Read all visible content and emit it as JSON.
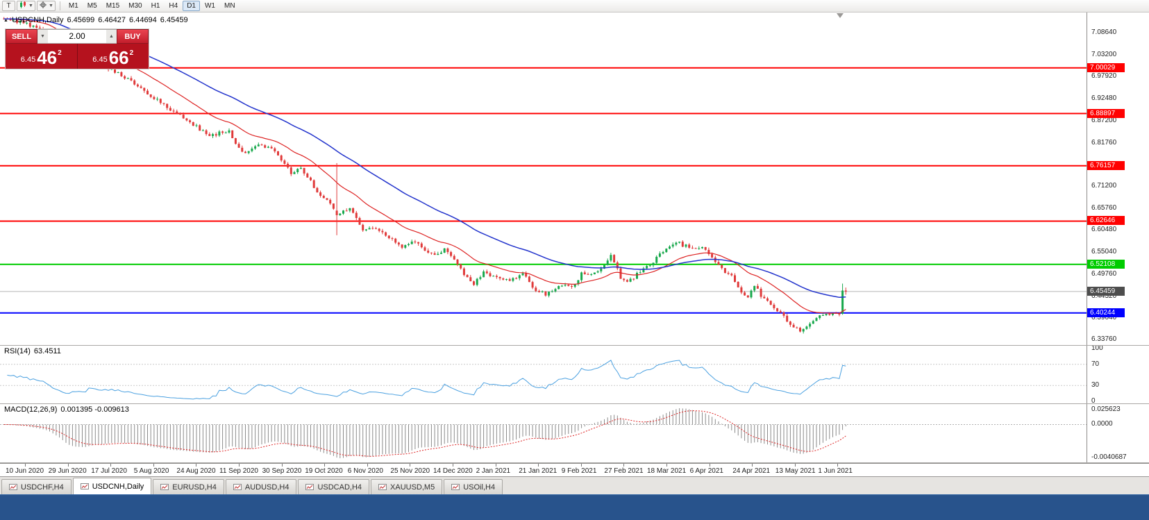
{
  "toolbar": {
    "tool_button": "T",
    "timeframes": [
      "M1",
      "M5",
      "M15",
      "M30",
      "H1",
      "H4",
      "D1",
      "W1",
      "MN"
    ],
    "active_timeframe": "D1"
  },
  "chart": {
    "title": "USDCNH,Daily",
    "open": "6.45699",
    "high": "6.46427",
    "low": "6.44694",
    "close": "6.45459"
  },
  "trade_panel": {
    "sell_label": "SELL",
    "buy_label": "BUY",
    "volume": "2.00",
    "sell_price": {
      "prefix": "6.45",
      "big": "46",
      "sup": "2"
    },
    "buy_price": {
      "prefix": "6.45",
      "big": "66",
      "sup": "2"
    }
  },
  "price_scale": {
    "labels": [
      "7.08640",
      "7.03200",
      "6.97920",
      "6.92480",
      "6.87200",
      "6.81760",
      "6.76320",
      "6.71200",
      "6.65760",
      "6.60480",
      "6.55040",
      "6.49760",
      "6.44320",
      "6.39040",
      "6.33760"
    ]
  },
  "hlines": [
    {
      "price": 7.00029,
      "label": "7.00029",
      "color": "#ff0000"
    },
    {
      "price": 6.88897,
      "label": "6.88897",
      "color": "#ff0000"
    },
    {
      "price": 6.76157,
      "label": "6.76157",
      "color": "#ff0000"
    },
    {
      "price": 6.62646,
      "label": "6.62646",
      "color": "#ff0000"
    },
    {
      "price": 6.52108,
      "label": "6.52108",
      "color": "#00cc00"
    },
    {
      "price": 6.40244,
      "label": "6.40244",
      "color": "#0000ff"
    }
  ],
  "current_price": {
    "price": 6.45459,
    "label": "6.45459",
    "color": "#4d4d4d"
  },
  "indicators": {
    "rsi": {
      "name": "RSI(14)",
      "value": "63.4511",
      "levels": [
        "100",
        "70",
        "30",
        "0"
      ]
    },
    "macd": {
      "name": "MACD(12,26,9)",
      "values": "0.001395 -0.009613",
      "scale_top": "0.025623",
      "scale_zero": "0.0000",
      "scale_bottom": "-0.0040687"
    }
  },
  "time_axis": {
    "labels": [
      "10 Jun 2020",
      "29 Jun 2020",
      "17 Jul 2020",
      "5 Aug 2020",
      "24 Aug 2020",
      "11 Sep 2020",
      "30 Sep 2020",
      "19 Oct 2020",
      "6 Nov 2020",
      "25 Nov 2020",
      "14 Dec 2020",
      "2 Jan 2021",
      "21 Jan 2021",
      "9 Feb 2021",
      "27 Feb 2021",
      "18 Mar 2021",
      "6 Apr 2021",
      "24 Apr 2021",
      "13 May 2021",
      "1 Jun 2021"
    ]
  },
  "tabs": [
    {
      "label": "USDCHF,H4",
      "active": false
    },
    {
      "label": "USDCNH,Daily",
      "active": true
    },
    {
      "label": "EURUSD,H4",
      "active": false
    },
    {
      "label": "AUDUSD,H4",
      "active": false
    },
    {
      "label": "USDCAD,H4",
      "active": false
    },
    {
      "label": "XAUUSD,M5",
      "active": false
    },
    {
      "label": "USOil,H4",
      "active": false
    }
  ],
  "chart_data": {
    "type": "candlestick",
    "symbol": "USDCNH",
    "period": "Daily",
    "ylim": [
      6.3376,
      7.0864
    ],
    "support_resistance": [
      7.00029,
      6.88897,
      6.76157,
      6.62646,
      6.52108,
      6.40244
    ],
    "last_ohlc": {
      "open": 6.45699,
      "high": 6.46427,
      "low": 6.44694,
      "close": 6.45459
    },
    "colors": {
      "up": "#18a84c",
      "down": "#e03a3a",
      "ma_fast": "#dd2222",
      "ma_slow": "#2233cc",
      "rsi": "#4aa0e0",
      "macd_hist": "#8a8a8a",
      "macd_signal": "#dd2222"
    },
    "ma_fast_period": 21,
    "ma_slow_period": 55,
    "price_path": [
      [
        -19,
        7.122
      ],
      [
        -12,
        7.108
      ],
      [
        -7,
        7.094
      ],
      [
        -3,
        7.05
      ],
      [
        0,
        7.012
      ],
      [
        7,
        7.012
      ],
      [
        12,
        7.001
      ],
      [
        14,
        6.996
      ],
      [
        22,
        6.956
      ],
      [
        31,
        6.906
      ],
      [
        36,
        6.876
      ],
      [
        44,
        6.836
      ],
      [
        50,
        6.846
      ],
      [
        54,
        6.792
      ],
      [
        59,
        6.814
      ],
      [
        64,
        6.8
      ],
      [
        69,
        6.742
      ],
      [
        72,
        6.758
      ],
      [
        77,
        6.7
      ],
      [
        80,
        6.678
      ],
      [
        82,
        6.658
      ],
      [
        84,
        6.646
      ],
      [
        87,
        6.658
      ],
      [
        91,
        6.602
      ],
      [
        95,
        6.612
      ],
      [
        99,
        6.586
      ],
      [
        103,
        6.566
      ],
      [
        107,
        6.576
      ],
      [
        112,
        6.546
      ],
      [
        116,
        6.556
      ],
      [
        119,
        6.53
      ],
      [
        122,
        6.497
      ],
      [
        125,
        6.472
      ],
      [
        128,
        6.5
      ],
      [
        132,
        6.49
      ],
      [
        136,
        6.48
      ],
      [
        140,
        6.5
      ],
      [
        144,
        6.456
      ],
      [
        147,
        6.448
      ],
      [
        151,
        6.47
      ],
      [
        155,
        6.464
      ],
      [
        158,
        6.497
      ],
      [
        162,
        6.502
      ],
      [
        165,
        6.52
      ],
      [
        167,
        6.544
      ],
      [
        170,
        6.49
      ],
      [
        172,
        6.478
      ],
      [
        176,
        6.502
      ],
      [
        179,
        6.52
      ],
      [
        182,
        6.545
      ],
      [
        185,
        6.565
      ],
      [
        188,
        6.572
      ],
      [
        192,
        6.558
      ],
      [
        195,
        6.565
      ],
      [
        198,
        6.54
      ],
      [
        201,
        6.51
      ],
      [
        204,
        6.49
      ],
      [
        207,
        6.455
      ],
      [
        209,
        6.44
      ],
      [
        211,
        6.468
      ],
      [
        214,
        6.435
      ],
      [
        216,
        6.42
      ],
      [
        219,
        6.4
      ],
      [
        222,
        6.377
      ],
      [
        225,
        6.358
      ],
      [
        227,
        6.372
      ],
      [
        230,
        6.39
      ],
      [
        233,
        6.401
      ],
      [
        236,
        6.399
      ],
      [
        237,
        6.4005
      ],
      [
        238,
        6.457
      ],
      [
        239,
        6.45459
      ]
    ],
    "special_candles": [
      {
        "d": 83,
        "o": 6.652,
        "h": 6.768,
        "l": 6.592,
        "c": 6.641
      },
      {
        "d": 238,
        "o": 6.4005,
        "h": 6.474,
        "l": 6.398,
        "c": 6.457
      },
      {
        "d": 239,
        "o": 6.45699,
        "h": 6.46427,
        "l": 6.44694,
        "c": 6.45459
      }
    ]
  }
}
